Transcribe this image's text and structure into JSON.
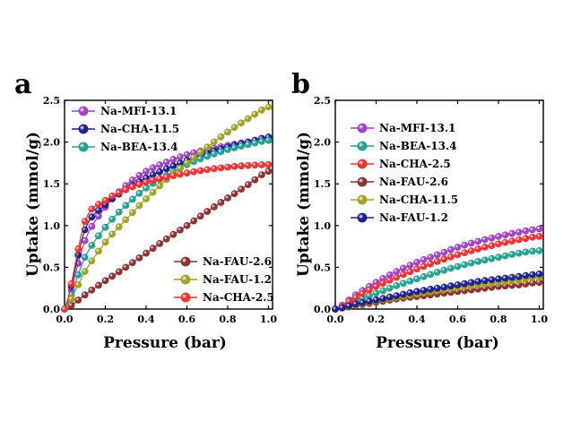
{
  "chart_data": [
    {
      "type": "scatter",
      "panel_label": "a",
      "xlabel": "Pressure (bar)",
      "ylabel": "Uptake (mmol/g)",
      "xlim": [
        0,
        1.02
      ],
      "ylim": [
        0,
        2.5
      ],
      "xticks": [
        "0.0",
        "0.2",
        "0.4",
        "0.6",
        "0.8",
        "1.0"
      ],
      "yticks": [
        "0.0",
        "0.5",
        "1.0",
        "1.5",
        "2.0",
        "2.5"
      ],
      "legends": [
        {
          "placement": "top-left",
          "entries": [
            "Na-MFI-13.1",
            "Na-CHA-11.5",
            "Na-BEA-13.4"
          ]
        },
        {
          "placement": "bottom-right",
          "entries": [
            "Na-FAU-2.6",
            "Na-FAU-1.2",
            "Na-CHA-2.5"
          ]
        }
      ],
      "series": [
        {
          "name": "Na-MFI-13.1",
          "color": "#a040c0",
          "x": [
            0.0,
            0.1,
            0.2,
            0.3,
            0.4,
            0.5,
            0.6,
            0.7,
            0.8,
            0.9,
            1.0
          ],
          "y": [
            0.0,
            0.82,
            1.22,
            1.48,
            1.65,
            1.76,
            1.85,
            1.91,
            1.96,
            2.0,
            2.03
          ]
        },
        {
          "name": "Na-CHA-11.5",
          "color": "#1c1c8c",
          "x": [
            0.0,
            0.1,
            0.2,
            0.3,
            0.4,
            0.5,
            0.6,
            0.7,
            0.8,
            0.9,
            1.0
          ],
          "y": [
            0.0,
            0.95,
            1.25,
            1.43,
            1.57,
            1.68,
            1.78,
            1.87,
            1.94,
            2.0,
            2.06
          ]
        },
        {
          "name": "Na-BEA-13.4",
          "color": "#20a090",
          "x": [
            0.0,
            0.1,
            0.2,
            0.3,
            0.4,
            0.5,
            0.6,
            0.7,
            0.8,
            0.9,
            1.0
          ],
          "y": [
            0.0,
            0.62,
            0.98,
            1.24,
            1.45,
            1.6,
            1.73,
            1.83,
            1.91,
            1.97,
            2.02
          ]
        },
        {
          "name": "Na-FAU-2.6",
          "color": "#8c2e2e",
          "x": [
            0.0,
            0.1,
            0.2,
            0.3,
            0.4,
            0.5,
            0.6,
            0.7,
            0.8,
            0.9,
            1.0
          ],
          "y": [
            0.0,
            0.17,
            0.34,
            0.5,
            0.67,
            0.84,
            1.0,
            1.17,
            1.33,
            1.49,
            1.65
          ]
        },
        {
          "name": "Na-FAU-1.2",
          "color": "#a0a020",
          "x": [
            0.0,
            0.1,
            0.2,
            0.3,
            0.4,
            0.5,
            0.6,
            0.7,
            0.8,
            0.9,
            1.0
          ],
          "y": [
            0.0,
            0.45,
            0.8,
            1.07,
            1.32,
            1.55,
            1.75,
            1.94,
            2.12,
            2.28,
            2.42
          ]
        },
        {
          "name": "Na-CHA-2.5",
          "color": "#f03030",
          "x": [
            0.0,
            0.1,
            0.2,
            0.3,
            0.4,
            0.5,
            0.6,
            0.7,
            0.8,
            0.9,
            1.0
          ],
          "y": [
            0.0,
            1.05,
            1.3,
            1.43,
            1.52,
            1.58,
            1.63,
            1.67,
            1.7,
            1.72,
            1.73
          ]
        }
      ]
    },
    {
      "type": "scatter",
      "panel_label": "b",
      "xlabel": "Pressure (bar)",
      "ylabel": "Uptake (mmol/g)",
      "xlim": [
        0,
        1.02
      ],
      "ylim": [
        0,
        2.5
      ],
      "xticks": [
        "0.0",
        "0.2",
        "0.4",
        "0.6",
        "0.8",
        "1.0"
      ],
      "yticks": [
        "0.0",
        "0.5",
        "1.0",
        "1.5",
        "2.0",
        "2.5"
      ],
      "legends": [
        {
          "placement": "top-left",
          "entries": [
            "Na-MFI-13.1",
            "Na-BEA-13.4",
            "Na-CHA-2.5",
            "Na-FAU-2.6",
            "Na-CHA-11.5",
            "Na-FAU-1.2"
          ]
        }
      ],
      "series": [
        {
          "name": "Na-MFI-13.1",
          "color": "#a040c0",
          "x": [
            0.0,
            0.1,
            0.2,
            0.3,
            0.4,
            0.5,
            0.6,
            0.7,
            0.8,
            0.9,
            1.0
          ],
          "y": [
            0.0,
            0.17,
            0.32,
            0.45,
            0.56,
            0.65,
            0.74,
            0.81,
            0.87,
            0.92,
            0.96
          ]
        },
        {
          "name": "Na-BEA-13.4",
          "color": "#20a090",
          "x": [
            0.0,
            0.1,
            0.2,
            0.3,
            0.4,
            0.5,
            0.6,
            0.7,
            0.8,
            0.9,
            1.0
          ],
          "y": [
            0.0,
            0.1,
            0.19,
            0.28,
            0.36,
            0.44,
            0.51,
            0.57,
            0.62,
            0.67,
            0.7
          ]
        },
        {
          "name": "Na-CHA-2.5",
          "color": "#f03030",
          "x": [
            0.0,
            0.1,
            0.2,
            0.3,
            0.4,
            0.5,
            0.6,
            0.7,
            0.8,
            0.9,
            1.0
          ],
          "y": [
            0.0,
            0.14,
            0.27,
            0.38,
            0.48,
            0.57,
            0.65,
            0.72,
            0.78,
            0.83,
            0.87
          ]
        },
        {
          "name": "Na-FAU-2.6",
          "color": "#8c2e2e",
          "x": [
            0.0,
            0.1,
            0.2,
            0.3,
            0.4,
            0.5,
            0.6,
            0.7,
            0.8,
            0.9,
            1.0
          ],
          "y": [
            0.0,
            0.04,
            0.08,
            0.12,
            0.15,
            0.18,
            0.21,
            0.24,
            0.27,
            0.29,
            0.32
          ]
        },
        {
          "name": "Na-CHA-11.5",
          "color": "#a0a020",
          "x": [
            0.0,
            0.1,
            0.2,
            0.3,
            0.4,
            0.5,
            0.6,
            0.7,
            0.8,
            0.9,
            1.0
          ],
          "y": [
            0.0,
            0.05,
            0.1,
            0.14,
            0.18,
            0.22,
            0.26,
            0.29,
            0.32,
            0.35,
            0.38
          ]
        },
        {
          "name": "Na-FAU-1.2",
          "color": "#1c1c8c",
          "x": [
            0.0,
            0.1,
            0.2,
            0.3,
            0.4,
            0.5,
            0.6,
            0.7,
            0.8,
            0.9,
            1.0
          ],
          "y": [
            0.0,
            0.06,
            0.11,
            0.16,
            0.21,
            0.25,
            0.29,
            0.33,
            0.36,
            0.39,
            0.42
          ]
        }
      ]
    }
  ]
}
